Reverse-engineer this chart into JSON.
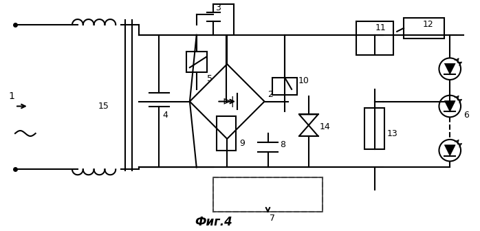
{
  "title": "Фиг.4",
  "bg_color": "#ffffff",
  "line_color": "#000000",
  "line_width": 1.5,
  "fig_width": 6.98,
  "fig_height": 3.36
}
